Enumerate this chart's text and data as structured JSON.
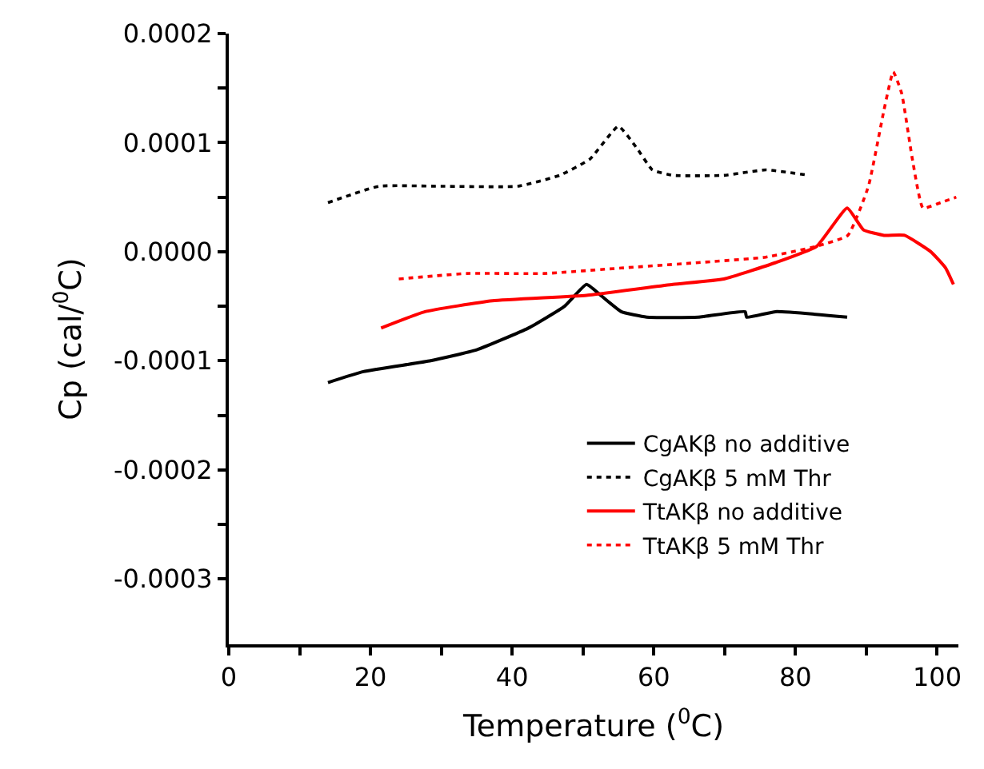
{
  "chart_data": {
    "type": "line",
    "xlabel": "Temperature ($^{0}$C)",
    "ylabel": "Cp (cal/$^{0}$C)",
    "xlim": [
      0,
      103
    ],
    "ylim": [
      -0.00036,
      0.0002
    ],
    "xticks": [
      0,
      {
        "value": 10,
        "label": null
      },
      20,
      {
        "value": 30,
        "label": null
      },
      40,
      {
        "value": 50,
        "label": null
      },
      60,
      {
        "value": 70,
        "label": null
      },
      80,
      {
        "value": 90,
        "label": null
      },
      100
    ],
    "yticks": [
      0.0002,
      {
        "value": 0.00015,
        "label": null
      },
      0.0001,
      {
        "value": 5e-05,
        "label": null
      },
      {
        "value": 0,
        "label": "0.0000"
      },
      {
        "value": -5e-05,
        "label": null
      },
      -0.0001,
      {
        "value": -0.00015,
        "label": null
      },
      -0.0002,
      {
        "value": -0.00025,
        "label": null
      },
      -0.0003
    ],
    "legend": "bottom right",
    "marker": "none",
    "series": [
      {
        "name": "CgAKβ no additive",
        "color": "#000000",
        "line_style": "solid",
        "x": [
          14.0,
          19.0,
          28.5,
          35.0,
          42.3,
          47.4,
          50.5,
          52.5,
          55.4,
          59.0,
          66.3,
          72.9,
          73.1,
          77.2,
          87.3
        ],
        "values": [
          -0.00012,
          -0.00011,
          -0.0001,
          -9e-05,
          -7e-05,
          -5e-05,
          -3e-05,
          -4e-05,
          -5.5e-05,
          -6e-05,
          -6e-05,
          -5.5e-05,
          -6e-05,
          -5.5e-05,
          -6e-05
        ]
      },
      {
        "name": "CgAKβ 5 mM Thr",
        "color": "#000000",
        "line_style": "dotted",
        "x": [
          14.0,
          21.2,
          30.0,
          40.8,
          46.7,
          51.0,
          55.0,
          57.6,
          59.8,
          62.7,
          69.9,
          75.8,
          81.9
        ],
        "values": [
          4.5e-05,
          6e-05,
          6e-05,
          6e-05,
          7e-05,
          8.5e-05,
          0.000115,
          9.5e-05,
          7.5e-05,
          7e-05,
          7e-05,
          7.5e-05,
          7e-05
        ]
      },
      {
        "name": "TtAKβ no additive",
        "color": "#ff0000",
        "line_style": "solid",
        "x": [
          21.5,
          27.7,
          37.2,
          50.5,
          62.7,
          69.9,
          77.2,
          83.0,
          87.3,
          89.6,
          92.5,
          95.4,
          99.1,
          101.2,
          102.3
        ],
        "values": [
          -7e-05,
          -5.5e-05,
          -4.5e-05,
          -4e-05,
          -3e-05,
          -2.5e-05,
          -1e-05,
          5e-06,
          4e-05,
          2e-05,
          1.5e-05,
          1.5e-05,
          0,
          -1.5e-05,
          -3e-05
        ]
      },
      {
        "name": "TtAKβ 5 mM Thr",
        "color": "#ff0000",
        "line_style": "dotted",
        "x": [
          24.0,
          33.6,
          44.5,
          55.4,
          66.3,
          75.8,
          83.0,
          87.4,
          90.3,
          92.5,
          93.8,
          95.0,
          96.5,
          98.0,
          100.5,
          102.7
        ],
        "values": [
          -2.5e-05,
          -2e-05,
          -2e-05,
          -1.5e-05,
          -1e-05,
          -5e-06,
          5e-06,
          1.5e-05,
          6e-05,
          0.00013,
          0.000165,
          0.000145,
          8.5e-05,
          4e-05,
          4.5e-05,
          5e-05
        ]
      }
    ]
  }
}
